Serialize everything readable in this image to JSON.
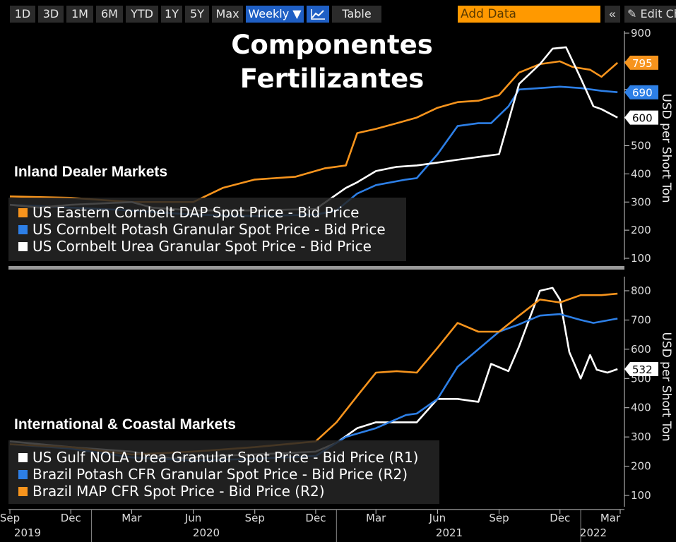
{
  "toolbar": {
    "buttons": [
      "1D",
      "3D",
      "1M",
      "6M",
      "YTD",
      "1Y",
      "5Y",
      "Max"
    ],
    "frequency": "Weekly ▼",
    "table_label": "Table",
    "add_data_placeholder": "Add Data",
    "collapse_label": "«",
    "edit_label": "✎ Edit Cha"
  },
  "chart_data": {
    "type": "line",
    "title": "Componentes Fertilizantes",
    "x_tick_labels": [
      "Sep",
      "Dec",
      "Mar",
      "Jun",
      "Sep",
      "Dec",
      "Mar",
      "Jun",
      "Sep",
      "Dec",
      "Mar"
    ],
    "x_year_labels": [
      "2019",
      "2020",
      "2021",
      "2022"
    ],
    "panels": [
      {
        "name": "Inland Dealer Markets",
        "ylabel": "USD per Short Ton",
        "ylim": [
          100,
          900
        ],
        "yticks": [
          100,
          200,
          300,
          400,
          500,
          600,
          700,
          800,
          900
        ],
        "last_value_tags": [
          795,
          690,
          600
        ],
        "series": [
          {
            "name": "US Eastern Cornbelt DAP Spot Price - Bid Price",
            "color": "#f7941d",
            "x": [
              "2019-09-01",
              "2019-12-01",
              "2020-03-01",
              "2020-06-01",
              "2020-07-15",
              "2020-09-01",
              "2020-11-01",
              "2020-12-15",
              "2021-01-15",
              "2021-02-01",
              "2021-03-01",
              "2021-04-01",
              "2021-05-01",
              "2021-06-01",
              "2021-07-01",
              "2021-08-01",
              "2021-09-01",
              "2021-10-01",
              "2021-11-01",
              "2021-12-01",
              "2021-12-20",
              "2022-01-15",
              "2022-02-01",
              "2022-02-25"
            ],
            "values": [
              320,
              315,
              300,
              300,
              350,
              380,
              390,
              420,
              430,
              545,
              560,
              580,
              600,
              635,
              655,
              660,
              680,
              760,
              790,
              800,
              780,
              770,
              745,
              795
            ]
          },
          {
            "name": "US Cornbelt Potash Granular Spot Price - Bid Price",
            "color": "#2d7fe6",
            "x": [
              "2019-09-01",
              "2019-12-01",
              "2020-03-01",
              "2020-06-01",
              "2020-09-01",
              "2020-12-01",
              "2021-01-01",
              "2021-02-01",
              "2021-03-01",
              "2021-04-15",
              "2021-05-01",
              "2021-06-01",
              "2021-07-01",
              "2021-08-01",
              "2021-08-20",
              "2021-09-15",
              "2021-10-01",
              "2021-11-01",
              "2021-12-01",
              "2022-01-01",
              "2022-02-01",
              "2022-02-25"
            ],
            "values": [
              290,
              280,
              270,
              255,
              250,
              255,
              270,
              330,
              360,
              380,
              385,
              470,
              570,
              580,
              580,
              640,
              700,
              705,
              710,
              705,
              695,
              690
            ]
          },
          {
            "name": "US Cornbelt Urea Granular Spot Price - Bid Price",
            "color": "#ffffff",
            "x": [
              "2019-09-01",
              "2019-10-15",
              "2019-12-01",
              "2020-03-01",
              "2020-04-01",
              "2020-06-01",
              "2020-09-01",
              "2020-12-01",
              "2021-01-15",
              "2021-02-01",
              "2021-03-01",
              "2021-04-01",
              "2021-05-01",
              "2021-06-01",
              "2021-07-01",
              "2021-08-01",
              "2021-09-01",
              "2021-10-01",
              "2021-11-01",
              "2021-11-20",
              "2021-12-10",
              "2022-01-01",
              "2022-01-20",
              "2022-02-01",
              "2022-02-25"
            ],
            "values": [
              290,
              280,
              290,
              300,
              280,
              270,
              270,
              275,
              350,
              370,
              410,
              425,
              430,
              440,
              450,
              460,
              470,
              720,
              790,
              845,
              850,
              740,
              640,
              630,
              600
            ]
          }
        ]
      },
      {
        "name": "International & Coastal Markets",
        "ylabel": "USD per Short Ton",
        "ylim": [
          100,
          800
        ],
        "yticks": [
          100,
          200,
          300,
          400,
          500,
          600,
          700,
          800
        ],
        "last_value_tags": [
          532
        ],
        "series": [
          {
            "name": "US Gulf NOLA Urea Granular Spot Price - Bid Price (R1)",
            "color": "#ffffff",
            "x": [
              "2019-09-01",
              "2019-12-01",
              "2020-03-01",
              "2020-05-01",
              "2020-07-01",
              "2020-09-01",
              "2020-12-01",
              "2021-01-01",
              "2021-02-01",
              "2021-03-01",
              "2021-05-01",
              "2021-06-01",
              "2021-07-01",
              "2021-08-01",
              "2021-08-20",
              "2021-09-15",
              "2021-10-01",
              "2021-11-01",
              "2021-11-20",
              "2021-12-01",
              "2021-12-15",
              "2022-01-01",
              "2022-01-15",
              "2022-01-25",
              "2022-02-10",
              "2022-02-25"
            ],
            "values": [
              285,
              265,
              250,
              225,
              235,
              240,
              250,
              280,
              330,
              350,
              350,
              430,
              430,
              420,
              550,
              525,
              610,
              800,
              810,
              770,
              590,
              500,
              580,
              530,
              520,
              532
            ]
          },
          {
            "name": "Brazil Potash CFR Granular Spot Price - Bid Price (R2)",
            "color": "#2d7fe6",
            "x": [
              "2019-09-01",
              "2019-12-01",
              "2020-03-01",
              "2020-06-01",
              "2020-09-01",
              "2020-12-01",
              "2021-01-15",
              "2021-03-01",
              "2021-04-15",
              "2021-05-01",
              "2021-06-01",
              "2021-07-01",
              "2021-08-01",
              "2021-09-01",
              "2021-10-01",
              "2021-11-01",
              "2021-12-01",
              "2022-01-01",
              "2022-01-20",
              "2022-02-25"
            ],
            "values": [
              275,
              260,
              230,
              220,
              225,
              235,
              300,
              330,
              375,
              380,
              430,
              540,
              600,
              660,
              685,
              715,
              720,
              700,
              690,
              705
            ]
          },
          {
            "name": "Brazil MAP CFR Spot Price - Bid Price (R2)",
            "color": "#f7941d",
            "x": [
              "2019-09-01",
              "2019-12-01",
              "2020-03-01",
              "2020-06-01",
              "2020-09-01",
              "2020-12-01",
              "2021-01-01",
              "2021-02-01",
              "2021-03-01",
              "2021-04-01",
              "2021-05-01",
              "2021-06-01",
              "2021-07-01",
              "2021-08-01",
              "2021-09-01",
              "2021-10-01",
              "2021-11-01",
              "2021-12-01",
              "2022-01-01",
              "2022-02-01",
              "2022-02-25"
            ],
            "values": [
              275,
              265,
              240,
              250,
              265,
              285,
              350,
              440,
              520,
              525,
              520,
              605,
              690,
              660,
              660,
              715,
              770,
              760,
              785,
              785,
              790
            ]
          }
        ]
      }
    ]
  }
}
